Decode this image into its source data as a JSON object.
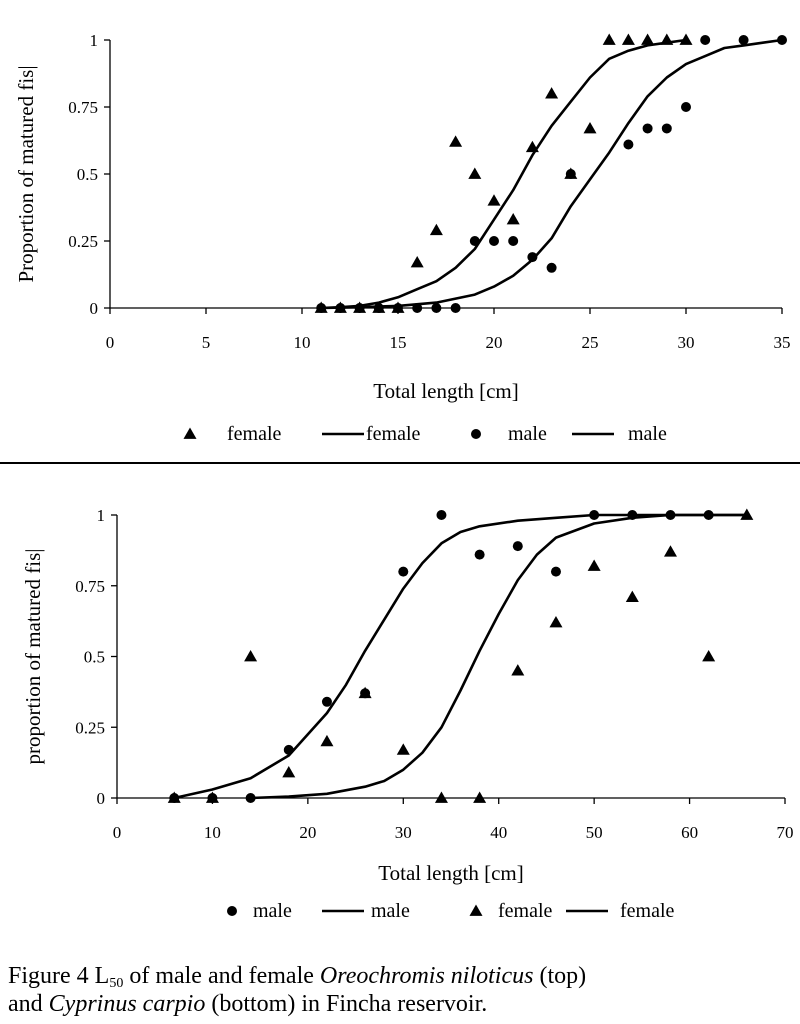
{
  "chart_data": [
    {
      "type": "scatter",
      "title": "",
      "xlabel": "Total length [cm]",
      "ylabel": "Proportion of matured fis|",
      "xlim": [
        0,
        35
      ],
      "ylim": [
        0,
        1
      ],
      "xticks": [
        0,
        5,
        10,
        15,
        20,
        25,
        30,
        35
      ],
      "yticks": [
        "0",
        "0.25",
        "0.5",
        "0.75",
        "1"
      ],
      "legend_placement": "bottom",
      "legend": [
        {
          "marker": "triangle",
          "label": "female"
        },
        {
          "marker": "line",
          "label": "female"
        },
        {
          "marker": "circle",
          "label": "male"
        },
        {
          "marker": "line",
          "label": "male"
        }
      ],
      "series": [
        {
          "name": "female",
          "kind": "points",
          "marker": "triangle",
          "points": [
            [
              11,
              0
            ],
            [
              12,
              0
            ],
            [
              13,
              0
            ],
            [
              14,
              0
            ],
            [
              15,
              0
            ],
            [
              16,
              0.17
            ],
            [
              17,
              0.29
            ],
            [
              18,
              0.62
            ],
            [
              19,
              0.5
            ],
            [
              20,
              0.4
            ],
            [
              21,
              0.33
            ],
            [
              22,
              0.6
            ],
            [
              23,
              0.8
            ],
            [
              24,
              0.5
            ],
            [
              25,
              0.67
            ],
            [
              26,
              1
            ],
            [
              27,
              1
            ],
            [
              28,
              1
            ],
            [
              29,
              1
            ],
            [
              30,
              1
            ]
          ]
        },
        {
          "name": "female",
          "kind": "curve",
          "points": [
            [
              11,
              0
            ],
            [
              12,
              0.003
            ],
            [
              13,
              0.008
            ],
            [
              14,
              0.02
            ],
            [
              15,
              0.04
            ],
            [
              16,
              0.07
            ],
            [
              17,
              0.1
            ],
            [
              18,
              0.15
            ],
            [
              19,
              0.22
            ],
            [
              20,
              0.33
            ],
            [
              21,
              0.44
            ],
            [
              22,
              0.57
            ],
            [
              23,
              0.68
            ],
            [
              24,
              0.77
            ],
            [
              25,
              0.86
            ],
            [
              26,
              0.93
            ],
            [
              27,
              0.96
            ],
            [
              28,
              0.98
            ],
            [
              29,
              0.99
            ],
            [
              30,
              1
            ]
          ]
        },
        {
          "name": "male",
          "kind": "points",
          "marker": "circle",
          "points": [
            [
              11,
              0
            ],
            [
              12,
              0
            ],
            [
              13,
              0
            ],
            [
              14,
              0
            ],
            [
              15,
              0
            ],
            [
              16,
              0
            ],
            [
              17,
              0
            ],
            [
              18,
              0
            ],
            [
              19,
              0.25
            ],
            [
              20,
              0.25
            ],
            [
              21,
              0.25
            ],
            [
              22,
              0.19
            ],
            [
              23,
              0.15
            ],
            [
              24,
              0.5
            ],
            [
              27,
              0.61
            ],
            [
              28,
              0.67
            ],
            [
              29,
              0.67
            ],
            [
              30,
              0.75
            ],
            [
              31,
              1
            ],
            [
              33,
              1
            ],
            [
              35,
              1
            ]
          ]
        },
        {
          "name": "male",
          "kind": "curve",
          "points": [
            [
              11,
              0
            ],
            [
              13,
              0.003
            ],
            [
              15,
              0.008
            ],
            [
              17,
              0.02
            ],
            [
              18,
              0.035
            ],
            [
              19,
              0.05
            ],
            [
              20,
              0.08
            ],
            [
              21,
              0.12
            ],
            [
              22,
              0.18
            ],
            [
              23,
              0.26
            ],
            [
              24,
              0.38
            ],
            [
              25,
              0.48
            ],
            [
              26,
              0.58
            ],
            [
              27,
              0.69
            ],
            [
              28,
              0.79
            ],
            [
              29,
              0.86
            ],
            [
              30,
              0.91
            ],
            [
              31,
              0.94
            ],
            [
              32,
              0.97
            ],
            [
              33,
              0.98
            ],
            [
              34,
              0.99
            ],
            [
              35,
              1
            ]
          ]
        }
      ]
    },
    {
      "type": "scatter",
      "title": "",
      "xlabel": "Total length [cm]",
      "ylabel": "proportion of matured fis|",
      "xlim": [
        0,
        70
      ],
      "ylim": [
        0,
        1
      ],
      "xticks": [
        0,
        10,
        20,
        30,
        40,
        50,
        60,
        70
      ],
      "yticks": [
        "0",
        "0.25",
        "0.5",
        "0.75",
        "1"
      ],
      "legend_placement": "bottom",
      "legend": [
        {
          "marker": "circle",
          "label": "male"
        },
        {
          "marker": "line",
          "label": "male"
        },
        {
          "marker": "triangle",
          "label": "female"
        },
        {
          "marker": "line",
          "label": "female"
        }
      ],
      "series": [
        {
          "name": "male",
          "kind": "points",
          "marker": "circle",
          "points": [
            [
              6,
              0
            ],
            [
              10,
              0
            ],
            [
              14,
              0
            ],
            [
              18,
              0.17
            ],
            [
              22,
              0.34
            ],
            [
              26,
              0.37
            ],
            [
              30,
              0.8
            ],
            [
              34,
              1
            ],
            [
              38,
              0.86
            ],
            [
              42,
              0.89
            ],
            [
              46,
              0.8
            ],
            [
              50,
              1
            ],
            [
              54,
              1
            ],
            [
              58,
              1
            ],
            [
              62,
              1
            ]
          ]
        },
        {
          "name": "male",
          "kind": "curve",
          "points": [
            [
              6,
              0
            ],
            [
              10,
              0.03
            ],
            [
              14,
              0.07
            ],
            [
              18,
              0.15
            ],
            [
              22,
              0.3
            ],
            [
              24,
              0.4
            ],
            [
              26,
              0.52
            ],
            [
              28,
              0.63
            ],
            [
              30,
              0.74
            ],
            [
              32,
              0.83
            ],
            [
              34,
              0.9
            ],
            [
              36,
              0.94
            ],
            [
              38,
              0.96
            ],
            [
              42,
              0.98
            ],
            [
              46,
              0.99
            ],
            [
              50,
              1
            ],
            [
              66,
              1
            ]
          ]
        },
        {
          "name": "female",
          "kind": "points",
          "marker": "triangle",
          "points": [
            [
              6,
              0
            ],
            [
              10,
              0
            ],
            [
              14,
              0.5
            ],
            [
              18,
              0.09
            ],
            [
              22,
              0.2
            ],
            [
              26,
              0.37
            ],
            [
              30,
              0.17
            ],
            [
              34,
              0
            ],
            [
              38,
              0
            ],
            [
              42,
              0.45
            ],
            [
              46,
              0.62
            ],
            [
              50,
              0.82
            ],
            [
              54,
              0.71
            ],
            [
              58,
              0.87
            ],
            [
              62,
              0.5
            ],
            [
              66,
              1
            ]
          ]
        },
        {
          "name": "female",
          "kind": "curve",
          "points": [
            [
              14,
              0
            ],
            [
              18,
              0.005
            ],
            [
              22,
              0.015
            ],
            [
              26,
              0.04
            ],
            [
              28,
              0.06
            ],
            [
              30,
              0.1
            ],
            [
              32,
              0.16
            ],
            [
              34,
              0.25
            ],
            [
              36,
              0.38
            ],
            [
              38,
              0.52
            ],
            [
              40,
              0.65
            ],
            [
              42,
              0.77
            ],
            [
              44,
              0.86
            ],
            [
              46,
              0.92
            ],
            [
              50,
              0.97
            ],
            [
              54,
              0.99
            ],
            [
              58,
              1
            ],
            [
              66,
              1
            ]
          ]
        }
      ]
    }
  ],
  "caption": {
    "part1": "Figure 4 L",
    "sub": "50",
    "part2": " of male and female ",
    "species1": "Oreochromis niloticus",
    "part3": " (top)",
    "part4": "and ",
    "species2": "Cyprinus carpio",
    "part5": " (bottom) in Fincha reservoir."
  }
}
